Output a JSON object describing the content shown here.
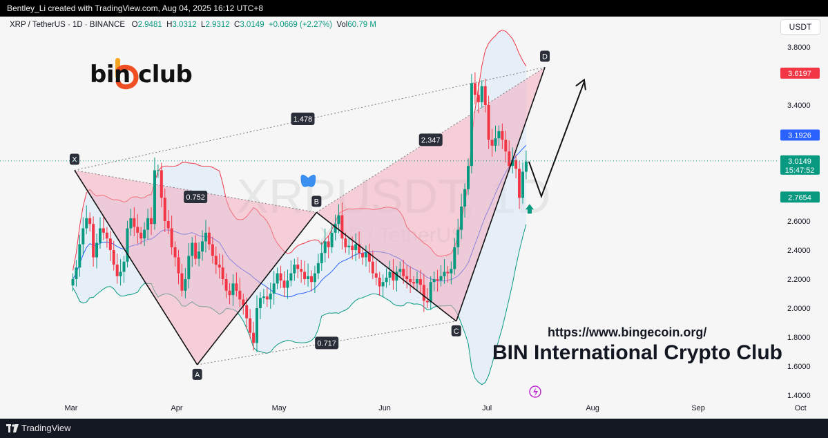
{
  "header": {
    "credit": "Bentley_Li created with TradingView.com, Aug 04, 2025 16:12 UTC+8"
  },
  "legend": {
    "symbol": "XRP / TetherUS · 1D · BINANCE",
    "open_label": "O",
    "open": "2.9481",
    "high_label": "H",
    "high": "3.0312",
    "low_label": "L",
    "low": "2.9312",
    "close_label": "C",
    "close": "3.0149",
    "change": "+0.0669 (+2.27%)",
    "vol_label": "Vol",
    "vol": "60.79 M"
  },
  "currency_button": "USDT",
  "brand": {
    "name": "bin club"
  },
  "watermark": {
    "ticker": "XRPUSDT, 1D",
    "pair": "XRP / TetherUS"
  },
  "footer": {
    "url": "https://www.bingecoin.org/",
    "club": "BIN International Crypto Club",
    "platform": "TradingView"
  },
  "price_badges": {
    "upper": "3.6197",
    "middle": "3.1926",
    "last": "3.0149",
    "countdown": "15:47:52",
    "lower": "2.7654"
  },
  "colors": {
    "up": "#089981",
    "down": "#f23645",
    "upper_band": "#f23645",
    "mid_band": "#2962ff",
    "lower_band": "#089981",
    "band_fill": "#d9e8f7",
    "pattern_fill": "#f3a6b8"
  },
  "chart_data": {
    "type": "line",
    "title": "XRP / TetherUS · 1D · BINANCE",
    "y_ticks": [
      "3.8000",
      "3.4000",
      "2.6000",
      "2.4000",
      "2.2000",
      "2.0000",
      "1.8000",
      "1.6000",
      "1.4000"
    ],
    "y_tick_values": [
      3.8,
      3.4,
      2.6,
      2.4,
      2.2,
      2.0,
      1.8,
      1.6,
      1.4
    ],
    "x_ticks": [
      "Mar",
      "Apr",
      "May",
      "Jun",
      "Jul",
      "Aug",
      "Sep",
      "Oct"
    ],
    "ylim": [
      1.3,
      3.88
    ],
    "harmonic_pattern": {
      "points": [
        {
          "name": "X",
          "date": "2025-03-02",
          "price": 2.95
        },
        {
          "name": "A",
          "date": "2025-04-07",
          "price": 1.61
        },
        {
          "name": "B",
          "date": "2025-05-12",
          "price": 2.66
        },
        {
          "name": "C",
          "date": "2025-06-22",
          "price": 1.91
        },
        {
          "name": "D",
          "date": "2025-07-18",
          "price": 3.66
        }
      ],
      "ratios": [
        "0.752",
        "1.478",
        "2.347",
        "0.717"
      ]
    },
    "price_levels": [
      {
        "name": "Upper band",
        "value": 3.6197
      },
      {
        "name": "Middle band",
        "value": 3.1926
      },
      {
        "name": "Last price",
        "value": 3.0149
      },
      {
        "name": "Lower band",
        "value": 2.7654
      }
    ],
    "closes": [
      2.2,
      2.28,
      2.44,
      2.55,
      2.62,
      2.58,
      2.35,
      2.45,
      2.55,
      2.52,
      2.48,
      2.4,
      2.3,
      2.22,
      2.25,
      2.32,
      2.55,
      2.62,
      2.56,
      2.52,
      2.48,
      2.54,
      2.62,
      2.58,
      2.95,
      2.95,
      2.76,
      2.6,
      2.55,
      2.42,
      2.35,
      2.24,
      2.12,
      2.2,
      2.36,
      2.45,
      2.34,
      2.39,
      2.46,
      2.52,
      2.44,
      2.36,
      2.3,
      2.28,
      2.2,
      2.12,
      2.09,
      2.17,
      2.12,
      2.06,
      2.02,
      1.93,
      1.83,
      1.76,
      2.0,
      2.07,
      2.08,
      2.06,
      2.1,
      2.17,
      2.24,
      2.19,
      2.14,
      2.19,
      2.24,
      2.3,
      2.27,
      2.25,
      2.2,
      2.22,
      2.18,
      2.24,
      2.31,
      2.38,
      2.46,
      2.42,
      2.52,
      2.58,
      2.64,
      2.48,
      2.42,
      2.43,
      2.4,
      2.44,
      2.38,
      2.35,
      2.38,
      2.32,
      2.24,
      2.21,
      2.15,
      2.18,
      2.21,
      2.25,
      2.19,
      2.25,
      2.27,
      2.22,
      2.2,
      2.18,
      2.17,
      2.2,
      2.16,
      2.05,
      2.04,
      2.18,
      2.2,
      2.19,
      2.22,
      2.25,
      2.24,
      2.27,
      2.42,
      2.54,
      2.7,
      2.82,
      2.98,
      3.55,
      3.47,
      3.42,
      3.53,
      3.4,
      3.16,
      3.12,
      3.17,
      3.22,
      3.16,
      3.08,
      2.98,
      3.02,
      2.96,
      2.76,
      2.94,
      3.01
    ]
  }
}
